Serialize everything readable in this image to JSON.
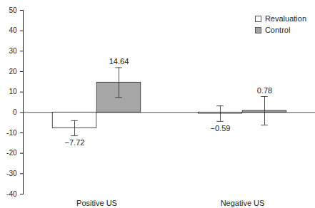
{
  "chart_data": {
    "type": "bar",
    "categories": [
      "Positive US",
      "Negative US"
    ],
    "series": [
      {
        "name": "Revaluation",
        "color": "#ffffff",
        "values": [
          -7.72,
          -0.59
        ],
        "value_labels": [
          "−7.72",
          "−0.59"
        ],
        "errors": [
          3.7,
          3.8
        ]
      },
      {
        "name": "Control",
        "color": "#a6a6a6",
        "values": [
          14.64,
          0.78
        ],
        "value_labels": [
          "14.64",
          "0.78"
        ],
        "errors": [
          7.3,
          7.0
        ]
      }
    ],
    "ylim": [
      -40,
      50
    ],
    "yticks": [
      -40,
      -30,
      -20,
      -10,
      0,
      10,
      20,
      30,
      40,
      50
    ],
    "grid": false,
    "legend": "top-right",
    "data_labels": true
  }
}
